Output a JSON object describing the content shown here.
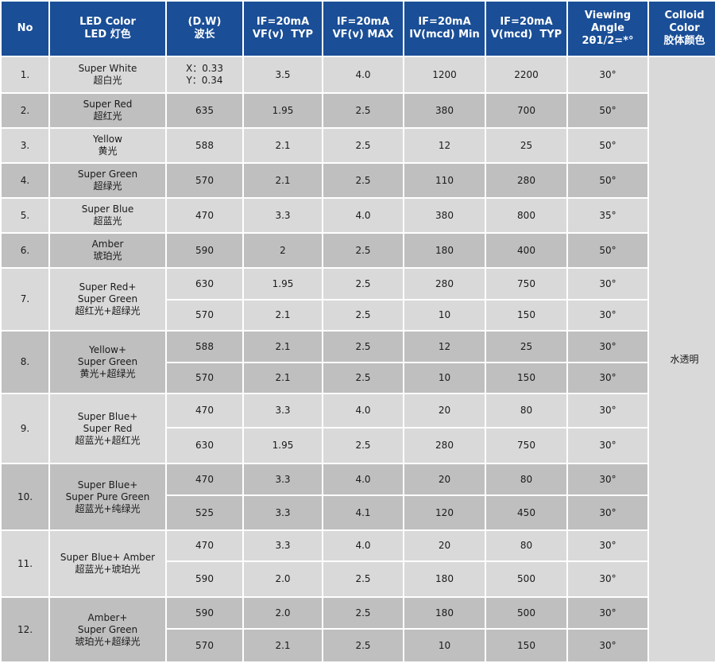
{
  "header": {
    "no": "No",
    "led_color": [
      "LED Color",
      "LED 灯色"
    ],
    "dw": [
      "(D.W)",
      "波长"
    ],
    "vf_typ": [
      "IF=20mA",
      "VF(v)  TYP"
    ],
    "vf_max": [
      "IF=20mA",
      "VF(v) MAX"
    ],
    "iv_min": [
      "IF=20mA",
      "IV(mcd) Min"
    ],
    "iv_typ": [
      "IF=20mA",
      "V(mcd)  TYP"
    ],
    "angle": [
      "Viewing Angle",
      "2θ1/2=*°"
    ],
    "colloid": [
      "Colloid Color",
      "胶体颜色"
    ]
  },
  "colloid_value": "水透明",
  "groups": [
    {
      "no": "1.",
      "color": [
        "Super White",
        "超白光"
      ],
      "shade": "light",
      "rows": [
        {
          "dw": [
            "X：0.33",
            "Y：0.34"
          ],
          "vf_typ": "3.5",
          "vf_max": "4.0",
          "iv_min": "1200",
          "iv_typ": "2200",
          "angle": "30°"
        }
      ]
    },
    {
      "no": "2.",
      "color": [
        "Super Red",
        "超红光"
      ],
      "shade": "dark",
      "rows": [
        {
          "dw": [
            "635"
          ],
          "vf_typ": "1.95",
          "vf_max": "2.5",
          "iv_min": "380",
          "iv_typ": "700",
          "angle": "50°"
        }
      ]
    },
    {
      "no": "3.",
      "color": [
        "Yellow",
        "黄光"
      ],
      "shade": "light",
      "rows": [
        {
          "dw": [
            "588"
          ],
          "vf_typ": "2.1",
          "vf_max": "2.5",
          "iv_min": "12",
          "iv_typ": "25",
          "angle": "50°"
        }
      ]
    },
    {
      "no": "4.",
      "color": [
        "Super Green",
        "超绿光"
      ],
      "shade": "dark",
      "rows": [
        {
          "dw": [
            "570"
          ],
          "vf_typ": "2.1",
          "vf_max": "2.5",
          "iv_min": "110",
          "iv_typ": "280",
          "angle": "50°"
        }
      ]
    },
    {
      "no": "5.",
      "color": [
        "Super Blue",
        "超蓝光"
      ],
      "shade": "light",
      "rows": [
        {
          "dw": [
            "470"
          ],
          "vf_typ": "3.3",
          "vf_max": "4.0",
          "iv_min": "380",
          "iv_typ": "800",
          "angle": "35°"
        }
      ]
    },
    {
      "no": "6.",
      "color": [
        "Amber",
        "琥珀光"
      ],
      "shade": "dark",
      "rows": [
        {
          "dw": [
            "590"
          ],
          "vf_typ": "2",
          "vf_max": "2.5",
          "iv_min": "180",
          "iv_typ": "400",
          "angle": "50°"
        }
      ]
    },
    {
      "no": "7.",
      "color": [
        "Super Red+",
        "Super Green",
        "超红光+超绿光"
      ],
      "shade": "light",
      "rows": [
        {
          "dw": [
            "630"
          ],
          "vf_typ": "1.95",
          "vf_max": "2.5",
          "iv_min": "280",
          "iv_typ": "750",
          "angle": "30°"
        },
        {
          "dw": [
            "570"
          ],
          "vf_typ": "2.1",
          "vf_max": "2.5",
          "iv_min": "10",
          "iv_typ": "150",
          "angle": "30°"
        }
      ]
    },
    {
      "no": "8.",
      "color": [
        "Yellow+",
        "Super Green",
        "黄光+超绿光"
      ],
      "shade": "dark",
      "rows": [
        {
          "dw": [
            "588"
          ],
          "vf_typ": "2.1",
          "vf_max": "2.5",
          "iv_min": "12",
          "iv_typ": "25",
          "angle": "30°"
        },
        {
          "dw": [
            "570"
          ],
          "vf_typ": "2.1",
          "vf_max": "2.5",
          "iv_min": "10",
          "iv_typ": "150",
          "angle": "30°"
        }
      ]
    },
    {
      "no": "9.",
      "color": [
        "Super Blue+",
        "Super Red",
        "超蓝光+超红光"
      ],
      "shade": "light",
      "rows": [
        {
          "dw": [
            "470"
          ],
          "vf_typ": "3.3",
          "vf_max": "4.0",
          "iv_min": "20",
          "iv_typ": "80",
          "angle": "30°"
        },
        {
          "dw": [
            "630"
          ],
          "vf_typ": "1.95",
          "vf_max": "2.5",
          "iv_min": "280",
          "iv_typ": "750",
          "angle": "30°"
        }
      ]
    },
    {
      "no": "10.",
      "color": [
        "Super Blue+",
        "Super Pure Green",
        "超蓝光+纯绿光"
      ],
      "shade": "dark",
      "rows": [
        {
          "dw": [
            "470"
          ],
          "vf_typ": "3.3",
          "vf_max": "4.0",
          "iv_min": "20",
          "iv_typ": "80",
          "angle": "30°"
        },
        {
          "dw": [
            "525"
          ],
          "vf_typ": "3.3",
          "vf_max": "4.1",
          "iv_min": "120",
          "iv_typ": "450",
          "angle": "30°"
        }
      ]
    },
    {
      "no": "11.",
      "color": [
        "Super Blue+ Amber",
        "超蓝光+琥珀光"
      ],
      "shade": "light",
      "rows": [
        {
          "dw": [
            "470"
          ],
          "vf_typ": "3.3",
          "vf_max": "4.0",
          "iv_min": "20",
          "iv_typ": "80",
          "angle": "30°"
        },
        {
          "dw": [
            "590"
          ],
          "vf_typ": "2.0",
          "vf_max": "2.5",
          "iv_min": "180",
          "iv_typ": "500",
          "angle": "30°"
        }
      ]
    },
    {
      "no": "12.",
      "color": [
        "Amber+",
        "Super Green",
        "琥珀光+超绿光"
      ],
      "shade": "dark",
      "rows": [
        {
          "dw": [
            "590"
          ],
          "vf_typ": "2.0",
          "vf_max": "2.5",
          "iv_min": "180",
          "iv_typ": "500",
          "angle": "30°"
        },
        {
          "dw": [
            "570"
          ],
          "vf_typ": "2.1",
          "vf_max": "2.5",
          "iv_min": "10",
          "iv_typ": "150",
          "angle": "30°"
        }
      ]
    }
  ]
}
